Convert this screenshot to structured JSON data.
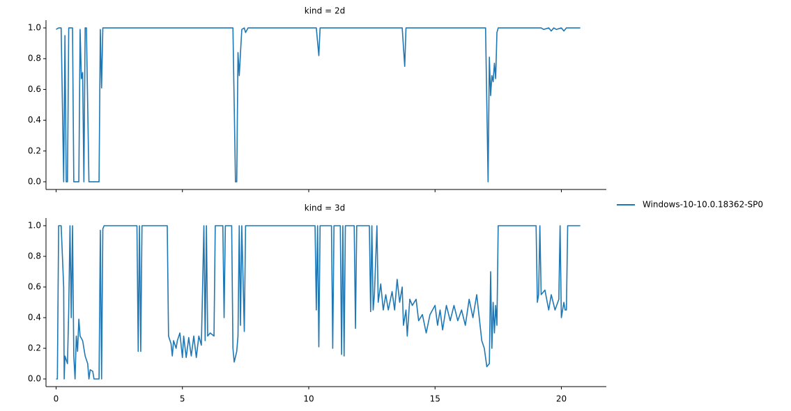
{
  "chart_data": [
    {
      "type": "line",
      "title": "kind = 2d",
      "x": [
        0,
        0.1,
        0.2,
        0.3,
        0.35,
        0.4,
        0.45,
        0.5,
        0.65,
        0.7,
        0.9,
        0.95,
        1.0,
        1.05,
        1.1,
        1.15,
        1.2,
        1.3,
        1.7,
        1.75,
        1.8,
        1.85,
        4.4,
        7.0,
        7.1,
        7.15,
        7.2,
        7.25,
        7.35,
        7.45,
        7.5,
        7.6,
        10.3,
        10.4,
        10.45,
        13.7,
        13.8,
        13.85,
        17.0,
        17.1,
        17.15,
        17.2,
        17.25,
        17.3,
        17.35,
        17.4,
        17.45,
        17.5,
        19.2,
        19.3,
        19.5,
        19.6,
        19.7,
        19.8,
        20.0,
        20.1,
        20.2,
        20.75
      ],
      "series": [
        {
          "name": "Windows-10-10.0.18362-SP0",
          "color": "#1f77b4",
          "values": [
            0.99,
            1.0,
            1.0,
            0,
            0.95,
            0,
            0,
            1.0,
            1.0,
            0,
            0,
            0.99,
            0.67,
            0.71,
            0,
            1.0,
            1.0,
            0,
            0,
            0.99,
            0.61,
            1.0,
            1.0,
            1.0,
            0,
            0,
            0.84,
            0.69,
            0.99,
            1.0,
            0.97,
            1.0,
            1.0,
            0.82,
            1.0,
            1.0,
            0.75,
            1.0,
            1.0,
            0,
            0.81,
            0.56,
            0.69,
            0.65,
            0.77,
            0.67,
            0.97,
            1.0,
            1.0,
            0.99,
            1.0,
            0.98,
            1.0,
            0.99,
            1.0,
            0.98,
            1.0,
            1.0
          ]
        }
      ],
      "xlim": [
        -0.4,
        21.78
      ],
      "xticks": [
        0,
        5,
        10,
        15,
        20
      ],
      "ylim": [
        -0.05,
        1.05
      ],
      "yticks": [
        {
          "value": 0,
          "label": "0.0"
        },
        {
          "value": 0.2,
          "label": "0.2"
        },
        {
          "value": 0.4,
          "label": "0.4"
        },
        {
          "value": 0.6,
          "label": "0.6"
        },
        {
          "value": 0.8,
          "label": "0.8"
        },
        {
          "value": 1,
          "label": "1.0"
        }
      ]
    },
    {
      "type": "line",
      "title": "kind = 3d",
      "x": [
        0,
        0.05,
        0.1,
        0.2,
        0.3,
        0.32,
        0.35,
        0.45,
        0.5,
        0.55,
        0.6,
        0.65,
        0.7,
        0.75,
        0.8,
        0.85,
        0.9,
        0.95,
        1.05,
        1.15,
        1.25,
        1.3,
        1.35,
        1.45,
        1.5,
        1.7,
        1.75,
        1.8,
        1.85,
        1.9,
        3.2,
        3.25,
        3.3,
        3.35,
        3.4,
        4.4,
        4.45,
        4.55,
        4.6,
        4.65,
        4.75,
        4.8,
        4.9,
        5.0,
        5.05,
        5.15,
        5.25,
        5.35,
        5.45,
        5.55,
        5.65,
        5.75,
        5.85,
        5.9,
        5.95,
        6.0,
        6.1,
        6.25,
        6.3,
        6.6,
        6.65,
        6.7,
        6.95,
        7.0,
        7.05,
        7.15,
        7.2,
        7.25,
        7.3,
        7.35,
        7.45,
        7.5,
        10.25,
        10.3,
        10.35,
        10.4,
        10.45,
        10.9,
        10.95,
        11.0,
        11.25,
        11.3,
        11.35,
        11.4,
        11.45,
        11.8,
        11.85,
        11.9,
        12.4,
        12.45,
        12.5,
        12.55,
        12.6,
        12.7,
        12.75,
        12.85,
        12.95,
        13.05,
        13.15,
        13.3,
        13.4,
        13.5,
        13.6,
        13.7,
        13.75,
        13.85,
        13.9,
        14.0,
        14.1,
        14.25,
        14.35,
        14.5,
        14.65,
        14.8,
        15.0,
        15.1,
        15.2,
        15.3,
        15.45,
        15.6,
        15.75,
        15.9,
        16.05,
        16.2,
        16.35,
        16.5,
        16.65,
        16.75,
        16.85,
        16.95,
        17.05,
        17.15,
        17.2,
        17.25,
        17.3,
        17.35,
        17.4,
        17.45,
        17.5,
        19.0,
        19.05,
        19.1,
        19.15,
        19.2,
        19.35,
        19.5,
        19.6,
        19.75,
        19.9,
        19.95,
        20.0,
        20.1,
        20.15,
        20.2,
        20.25,
        20.75
      ],
      "series": [
        {
          "color": "#1f77b4",
          "values": [
            0,
            0,
            1.0,
            1.0,
            0.6,
            0,
            0.15,
            0.1,
            0.45,
            1.0,
            0.4,
            1.0,
            0.15,
            0,
            0.28,
            0.18,
            0.39,
            0.28,
            0.25,
            0.15,
            0.1,
            0,
            0.06,
            0.05,
            0,
            0,
            0.97,
            0,
            0.98,
            1.0,
            1.0,
            0.18,
            1.0,
            0.18,
            1.0,
            1.0,
            0.28,
            0.23,
            0.15,
            0.25,
            0.2,
            0.25,
            0.3,
            0.14,
            0.28,
            0.14,
            0.27,
            0.15,
            0.28,
            0.14,
            0.28,
            0.22,
            1.0,
            0.25,
            1.0,
            0.28,
            0.3,
            0.28,
            1.0,
            1.0,
            0.4,
            1.0,
            1.0,
            0.2,
            0.11,
            0.18,
            0.28,
            1.0,
            0.35,
            1.0,
            0.31,
            1.0,
            1.0,
            0.45,
            1.0,
            0.21,
            1.0,
            1.0,
            0.2,
            1.0,
            1.0,
            0.16,
            1.0,
            0.15,
            1.0,
            1.0,
            0.33,
            1.0,
            1.0,
            0.44,
            1.0,
            0.45,
            0.55,
            1.0,
            0.5,
            0.62,
            0.45,
            0.55,
            0.45,
            0.57,
            0.45,
            0.65,
            0.5,
            0.6,
            0.35,
            0.45,
            0.28,
            0.52,
            0.48,
            0.52,
            0.38,
            0.42,
            0.3,
            0.42,
            0.48,
            0.35,
            0.45,
            0.32,
            0.48,
            0.38,
            0.48,
            0.38,
            0.45,
            0.35,
            0.52,
            0.4,
            0.55,
            0.4,
            0.25,
            0.2,
            0.08,
            0.1,
            0.7,
            0.2,
            0.5,
            0.3,
            0.48,
            0.35,
            1.0,
            1.0,
            0.5,
            0.55,
            1.0,
            0.55,
            0.58,
            0.45,
            0.55,
            0.45,
            0.52,
            1.0,
            0.4,
            0.5,
            0.45,
            0.45,
            1.0,
            1.0
          ]
        }
      ],
      "xlim": [
        -0.4,
        21.78
      ],
      "xticks": [
        0,
        5,
        10,
        15,
        20
      ],
      "ylim": [
        -0.05,
        1.05
      ],
      "yticks": [
        {
          "value": 0,
          "label": "0.0"
        },
        {
          "value": 0.2,
          "label": "0.2"
        },
        {
          "value": 0.4,
          "label": "0.4"
        },
        {
          "value": 0.6,
          "label": "0.6"
        },
        {
          "value": 0.8,
          "label": "0.8"
        },
        {
          "value": 1,
          "label": "1.0"
        }
      ]
    }
  ]
}
